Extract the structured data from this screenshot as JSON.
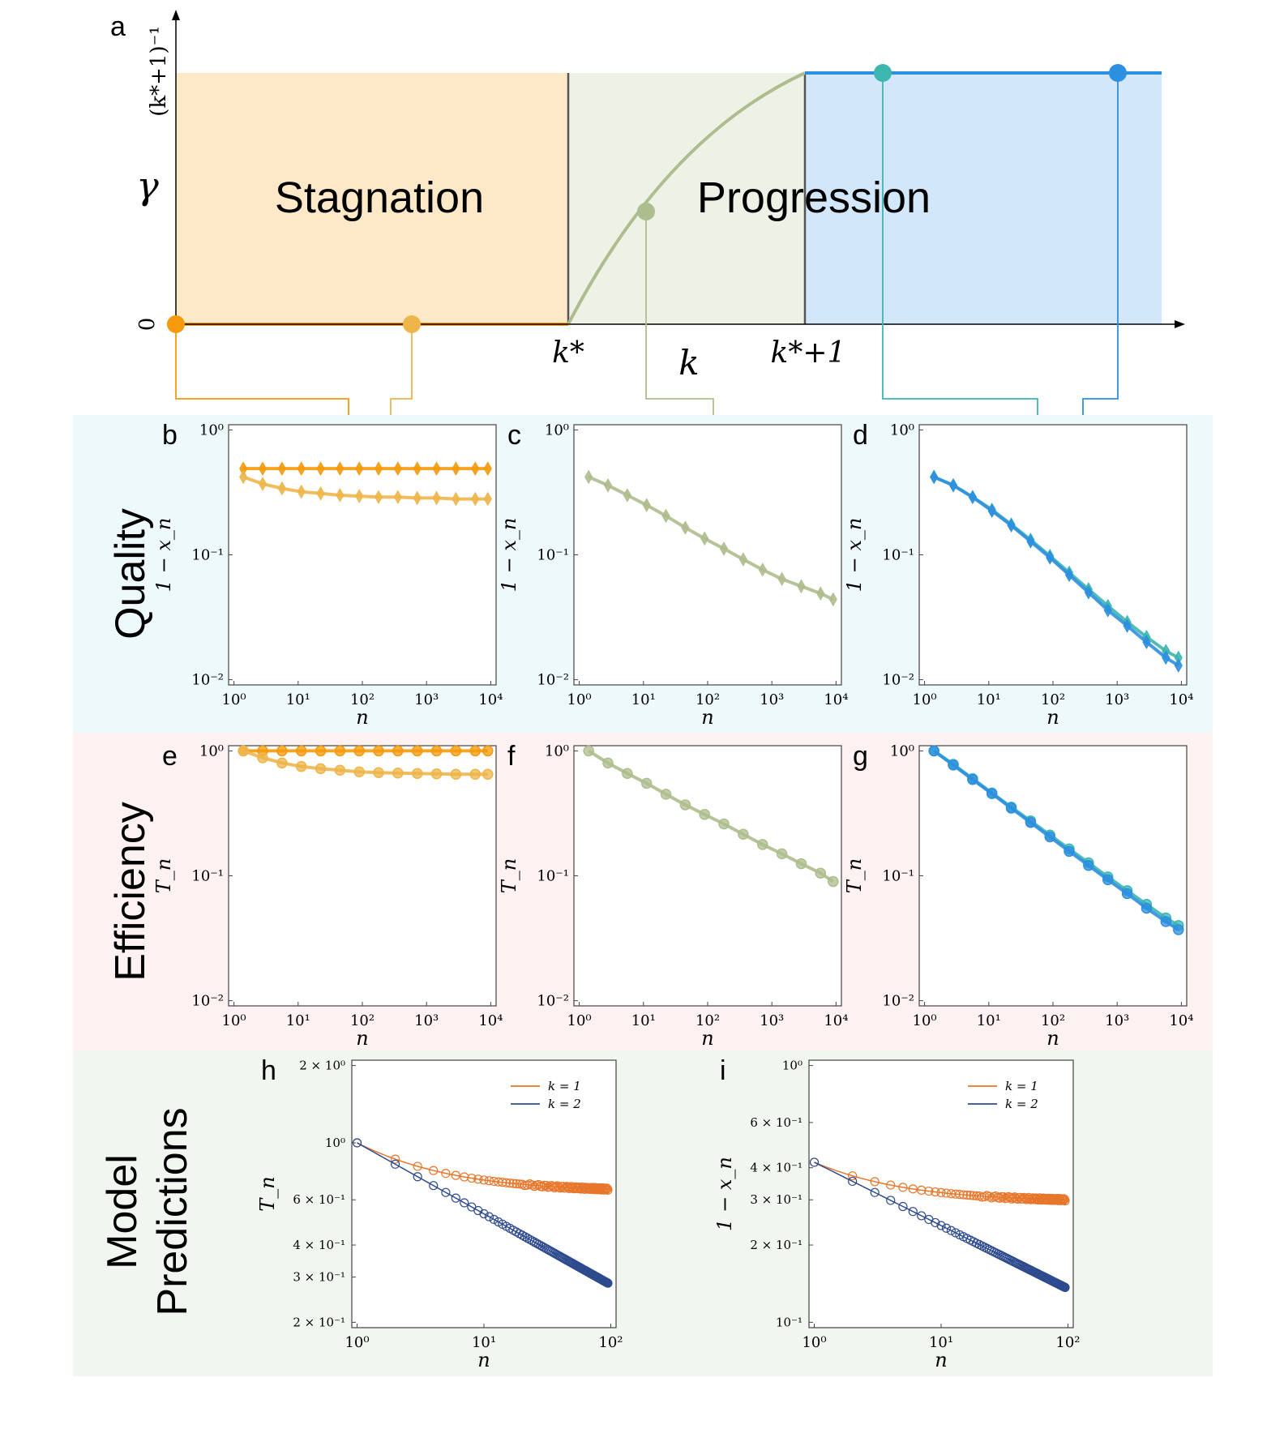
{
  "panel_a": {
    "label": "a",
    "y_axis_label": "γ",
    "y_top_label": "(k*+1)⁻¹",
    "y_zero_label": "0",
    "x_axis_label": "k",
    "x_tick_kstar": "k*",
    "x_tick_kstar1": "k*+1",
    "region_left_label": "Stagnation",
    "region_right_label": "Progression",
    "colors": {
      "stagnation_fill": "#fde9c8",
      "middle_fill": "#eef1e6",
      "progression_fill": "#d3e7fa",
      "orange": "#f49a0c",
      "light_orange": "#eeb54a",
      "olive": "#aebd8d",
      "teal": "#3db6b0",
      "blue": "#2d8fe0"
    }
  },
  "bands": {
    "quality": {
      "label": "Quality",
      "color": "#eef9fc"
    },
    "efficiency": {
      "label": "Efficiency",
      "color": "#fdf1f1"
    },
    "model": {
      "label_line1": "Model",
      "label_line2": "Predictions",
      "color": "#f1f6f0"
    }
  },
  "chart_data": [
    {
      "id": "b",
      "type": "line",
      "label": "b",
      "ylabel": "1 − x_n",
      "xlabel": "n",
      "xscale": "log",
      "yscale": "log",
      "xlim": [
        1,
        10000
      ],
      "ylim": [
        0.01,
        1
      ],
      "marker": "diamond",
      "xticks": [
        "10⁰",
        "10¹",
        "10²",
        "10³",
        "10⁴"
      ],
      "yticks": [
        "10⁻²",
        "10⁻¹",
        "10⁰"
      ],
      "series": [
        {
          "color": "#f49a0c",
          "x": [
            1.4,
            2.8,
            5.6,
            11.2,
            22.4,
            44.8,
            89.6,
            179,
            358,
            717,
            1434,
            2867,
            5734,
            9000
          ],
          "y": [
            0.49,
            0.49,
            0.49,
            0.49,
            0.49,
            0.49,
            0.49,
            0.49,
            0.49,
            0.49,
            0.49,
            0.49,
            0.49,
            0.49
          ]
        },
        {
          "color": "#eeb54a",
          "x": [
            1.4,
            2.8,
            5.6,
            11.2,
            22.4,
            44.8,
            89.6,
            179,
            358,
            717,
            1434,
            2867,
            5734,
            9000
          ],
          "y": [
            0.42,
            0.37,
            0.34,
            0.32,
            0.31,
            0.3,
            0.295,
            0.29,
            0.29,
            0.285,
            0.285,
            0.28,
            0.28,
            0.28
          ]
        }
      ]
    },
    {
      "id": "c",
      "type": "line",
      "label": "c",
      "ylabel": "1 − x_n",
      "xlabel": "n",
      "xscale": "log",
      "yscale": "log",
      "xlim": [
        1,
        10000
      ],
      "ylim": [
        0.01,
        1
      ],
      "marker": "diamond",
      "xticks": [
        "10⁰",
        "10¹",
        "10²",
        "10³",
        "10⁴"
      ],
      "yticks": [
        "10⁻²",
        "10⁻¹",
        "10⁰"
      ],
      "series": [
        {
          "color": "#aebd8d",
          "x": [
            1.4,
            2.8,
            5.6,
            11.2,
            22.4,
            44.8,
            89.6,
            179,
            358,
            717,
            1434,
            2867,
            5734,
            9000
          ],
          "y": [
            0.42,
            0.36,
            0.3,
            0.25,
            0.205,
            0.165,
            0.135,
            0.112,
            0.092,
            0.076,
            0.064,
            0.056,
            0.049,
            0.044
          ]
        }
      ]
    },
    {
      "id": "d",
      "type": "line",
      "label": "d",
      "ylabel": "1 − x_n",
      "xlabel": "n",
      "xscale": "log",
      "yscale": "log",
      "xlim": [
        1,
        10000
      ],
      "ylim": [
        0.01,
        1
      ],
      "marker": "diamond",
      "xticks": [
        "10⁰",
        "10¹",
        "10²",
        "10³",
        "10⁴"
      ],
      "yticks": [
        "10⁻²",
        "10⁻¹",
        "10⁰"
      ],
      "series": [
        {
          "color": "#3db6b0",
          "x": [
            1.4,
            2.8,
            5.6,
            11.2,
            22.4,
            44.8,
            89.6,
            179,
            358,
            717,
            1434,
            2867,
            5734,
            9000
          ],
          "y": [
            0.42,
            0.36,
            0.29,
            0.23,
            0.175,
            0.132,
            0.098,
            0.072,
            0.053,
            0.039,
            0.029,
            0.022,
            0.017,
            0.015
          ]
        },
        {
          "color": "#2d8fe0",
          "x": [
            1.4,
            2.8,
            5.6,
            11.2,
            22.4,
            44.8,
            89.6,
            179,
            358,
            717,
            1434,
            2867,
            5734,
            9000
          ],
          "y": [
            0.42,
            0.36,
            0.29,
            0.225,
            0.172,
            0.128,
            0.095,
            0.069,
            0.05,
            0.036,
            0.027,
            0.02,
            0.015,
            0.013
          ]
        }
      ]
    },
    {
      "id": "e",
      "type": "line",
      "label": "e",
      "ylabel": "T_n",
      "xlabel": "n",
      "xscale": "log",
      "yscale": "log",
      "xlim": [
        1,
        10000
      ],
      "ylim": [
        0.01,
        1
      ],
      "marker": "circle",
      "xticks": [
        "10⁰",
        "10¹",
        "10²",
        "10³",
        "10⁴"
      ],
      "yticks": [
        "10⁻²",
        "10⁻¹",
        "10⁰"
      ],
      "series": [
        {
          "color": "#f49a0c",
          "x": [
            1.4,
            2.8,
            5.6,
            11.2,
            22.4,
            44.8,
            89.6,
            179,
            358,
            717,
            1434,
            2867,
            5734,
            9000
          ],
          "y": [
            1.0,
            1.0,
            1.0,
            1.0,
            1.0,
            1.0,
            1.0,
            1.0,
            1.0,
            1.0,
            1.0,
            1.0,
            1.0,
            1.0
          ]
        },
        {
          "color": "#eeb54a",
          "x": [
            1.4,
            2.8,
            5.6,
            11.2,
            22.4,
            44.8,
            89.6,
            179,
            358,
            717,
            1434,
            2867,
            5734,
            9000
          ],
          "y": [
            1.0,
            0.88,
            0.8,
            0.75,
            0.72,
            0.7,
            0.68,
            0.67,
            0.665,
            0.66,
            0.655,
            0.65,
            0.65,
            0.65
          ]
        }
      ]
    },
    {
      "id": "f",
      "type": "line",
      "label": "f",
      "ylabel": "T_n",
      "xlabel": "n",
      "xscale": "log",
      "yscale": "log",
      "xlim": [
        1,
        10000
      ],
      "ylim": [
        0.01,
        1
      ],
      "marker": "circle",
      "xticks": [
        "10⁰",
        "10¹",
        "10²",
        "10³",
        "10⁴"
      ],
      "yticks": [
        "10⁻²",
        "10⁻¹",
        "10⁰"
      ],
      "series": [
        {
          "color": "#aebd8d",
          "x": [
            1.4,
            2.8,
            5.6,
            11.2,
            22.4,
            44.8,
            89.6,
            179,
            358,
            717,
            1434,
            2867,
            5734,
            9000
          ],
          "y": [
            1.0,
            0.8,
            0.66,
            0.55,
            0.45,
            0.37,
            0.31,
            0.26,
            0.215,
            0.178,
            0.15,
            0.125,
            0.105,
            0.09
          ]
        }
      ]
    },
    {
      "id": "g",
      "type": "line",
      "label": "g",
      "ylabel": "T_n",
      "xlabel": "n",
      "xscale": "log",
      "yscale": "log",
      "xlim": [
        1,
        10000
      ],
      "ylim": [
        0.01,
        1
      ],
      "marker": "circle",
      "xticks": [
        "10⁰",
        "10¹",
        "10²",
        "10³",
        "10⁴"
      ],
      "yticks": [
        "10⁻²",
        "10⁻¹",
        "10⁰"
      ],
      "series": [
        {
          "color": "#3db6b0",
          "x": [
            1.4,
            2.8,
            5.6,
            11.2,
            22.4,
            44.8,
            89.6,
            179,
            358,
            717,
            1434,
            2867,
            5734,
            9000
          ],
          "y": [
            1.0,
            0.78,
            0.6,
            0.46,
            0.355,
            0.275,
            0.212,
            0.164,
            0.127,
            0.098,
            0.076,
            0.059,
            0.046,
            0.04
          ]
        },
        {
          "color": "#2d8fe0",
          "x": [
            1.4,
            2.8,
            5.6,
            11.2,
            22.4,
            44.8,
            89.6,
            179,
            358,
            717,
            1434,
            2867,
            5734,
            9000
          ],
          "y": [
            1.0,
            0.77,
            0.59,
            0.455,
            0.348,
            0.267,
            0.205,
            0.157,
            0.121,
            0.093,
            0.072,
            0.055,
            0.043,
            0.037
          ]
        }
      ]
    },
    {
      "id": "h",
      "type": "line",
      "label": "h",
      "ylabel": "T_n",
      "xlabel": "n",
      "xscale": "log",
      "yscale": "log",
      "xlim": [
        1,
        100
      ],
      "ylim": [
        0.2,
        2
      ],
      "marker": "open-circle",
      "xticks": [
        "10⁰",
        "10¹",
        "10²"
      ],
      "yticks": [
        {
          "value": 0.2,
          "label": "2 × 10⁻¹"
        },
        {
          "value": 0.3,
          "label": "3 × 10⁻¹"
        },
        {
          "value": 0.4,
          "label": "4 × 10⁻¹"
        },
        {
          "value": 0.6,
          "label": "6 × 10⁻¹"
        },
        {
          "value": 1.0,
          "label": "10⁰"
        },
        {
          "value": 2.0,
          "label": "2 × 10⁰"
        }
      ],
      "legend": {
        "position": "top-right"
      },
      "series": [
        {
          "name": "k = 1",
          "color": "#e8762a",
          "x0": 1.0,
          "y0": 1.0,
          "y_end": 0.66,
          "law": "stagnation"
        },
        {
          "name": "k = 2",
          "color": "#2e4b8e",
          "x0": 1.0,
          "y0": 1.0,
          "y_end": 0.28,
          "law": "power"
        }
      ]
    },
    {
      "id": "i",
      "type": "line",
      "label": "i",
      "ylabel": "1 − x_n",
      "xlabel": "n",
      "xscale": "log",
      "yscale": "log",
      "xlim": [
        1,
        100
      ],
      "ylim": [
        0.1,
        1
      ],
      "marker": "open-circle",
      "xticks": [
        "10⁰",
        "10¹",
        "10²"
      ],
      "yticks": [
        {
          "value": 0.1,
          "label": "10⁻¹"
        },
        {
          "value": 0.2,
          "label": "2 × 10⁻¹"
        },
        {
          "value": 0.3,
          "label": "3 × 10⁻¹"
        },
        {
          "value": 0.4,
          "label": "4 × 10⁻¹"
        },
        {
          "value": 0.6,
          "label": "6 × 10⁻¹"
        },
        {
          "value": 1.0,
          "label": "10⁰"
        }
      ],
      "legend": {
        "position": "top-right"
      },
      "series": [
        {
          "name": "k = 1",
          "color": "#e8762a",
          "x0": 1.0,
          "y0": 0.42,
          "y_end": 0.3,
          "law": "stagnation"
        },
        {
          "name": "k = 2",
          "color": "#2e4b8e",
          "x0": 1.0,
          "y0": 0.42,
          "y_end": 0.135,
          "law": "power"
        }
      ]
    }
  ]
}
